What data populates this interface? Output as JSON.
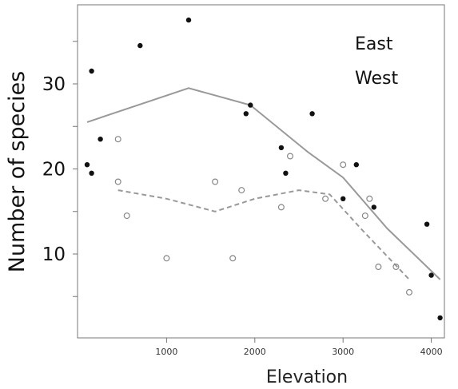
{
  "chart_data": {
    "type": "scatter",
    "xlabel": "Elevation",
    "ylabel": "Number of species",
    "xlim": [
      0,
      4200
    ],
    "ylim": [
      0,
      38
    ],
    "x_ticks": [
      1000,
      2000,
      3000,
      4000
    ],
    "y_ticks_labeled": [
      10,
      20,
      30
    ],
    "y_ticks_minor": [
      5,
      15,
      25,
      35
    ],
    "legend_placement": "top-right",
    "grid": false,
    "series": [
      {
        "name": "East",
        "marker": "filled-circle",
        "color": "#111111",
        "points": [
          {
            "x": 150,
            "y": 31.5
          },
          {
            "x": 100,
            "y": 20.5
          },
          {
            "x": 150,
            "y": 19.5
          },
          {
            "x": 250,
            "y": 23.5
          },
          {
            "x": 700,
            "y": 34.5
          },
          {
            "x": 1250,
            "y": 37.5
          },
          {
            "x": 1900,
            "y": 26.5
          },
          {
            "x": 1950,
            "y": 27.5
          },
          {
            "x": 2300,
            "y": 22.5
          },
          {
            "x": 2350,
            "y": 19.5
          },
          {
            "x": 2650,
            "y": 26.5
          },
          {
            "x": 3000,
            "y": 16.5
          },
          {
            "x": 3150,
            "y": 20.5
          },
          {
            "x": 3350,
            "y": 15.5
          },
          {
            "x": 3950,
            "y": 13.5
          },
          {
            "x": 4000,
            "y": 7.5
          },
          {
            "x": 4100,
            "y": 2.5
          }
        ],
        "smooth_line": {
          "style": "solid",
          "color": "#999999",
          "x": [
            100,
            1250,
            1950,
            2600,
            3000,
            3500,
            4100
          ],
          "y": [
            25.5,
            29.5,
            27.5,
            22,
            19,
            13,
            7
          ]
        }
      },
      {
        "name": "West",
        "marker": "open-circle",
        "color": "#888888",
        "points": [
          {
            "x": 450,
            "y": 23.5
          },
          {
            "x": 450,
            "y": 18.5
          },
          {
            "x": 550,
            "y": 14.5
          },
          {
            "x": 1000,
            "y": 9.5
          },
          {
            "x": 1550,
            "y": 18.5
          },
          {
            "x": 1750,
            "y": 9.5
          },
          {
            "x": 1850,
            "y": 17.5
          },
          {
            "x": 2300,
            "y": 15.5
          },
          {
            "x": 2400,
            "y": 21.5
          },
          {
            "x": 2800,
            "y": 16.5
          },
          {
            "x": 3000,
            "y": 20.5
          },
          {
            "x": 3250,
            "y": 14.5
          },
          {
            "x": 3300,
            "y": 16.5
          },
          {
            "x": 3400,
            "y": 8.5
          },
          {
            "x": 3600,
            "y": 8.5
          },
          {
            "x": 3750,
            "y": 5.5
          }
        ],
        "smooth_line": {
          "style": "dashed",
          "color": "#999999",
          "x": [
            450,
            1000,
            1550,
            2000,
            2500,
            2850,
            3200,
            3750
          ],
          "y": [
            17.5,
            16.5,
            15,
            16.5,
            17.5,
            17,
            13,
            7
          ]
        }
      }
    ]
  }
}
